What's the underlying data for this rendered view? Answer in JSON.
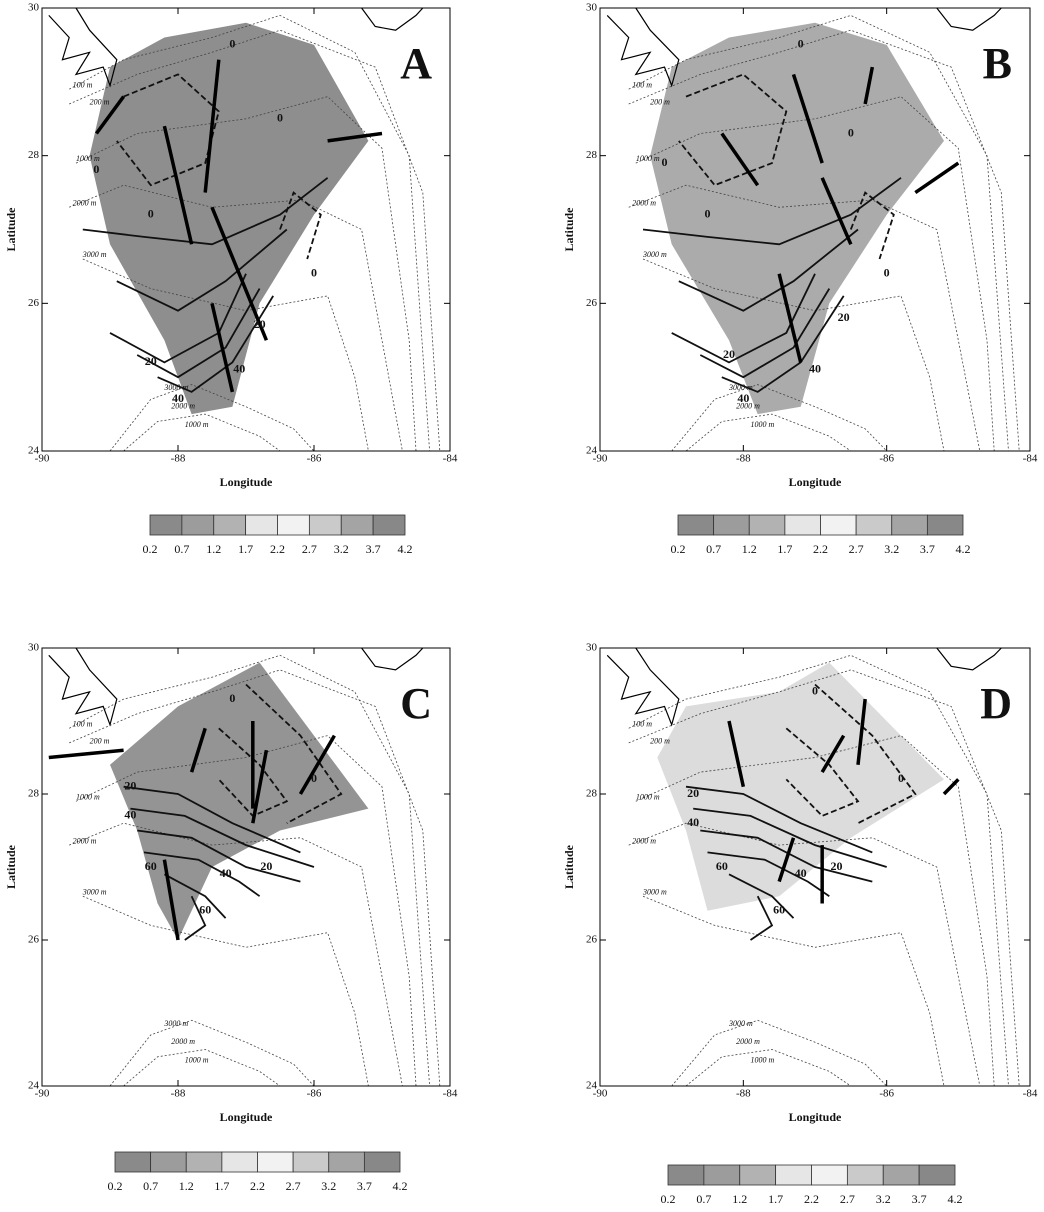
{
  "panels": [
    {
      "label": "A",
      "x_axis_title": "Longitude",
      "y_axis_title": "Latitude",
      "x_ticks": [
        -90,
        -88,
        -86,
        -84
      ],
      "y_ticks": [
        24,
        26,
        28,
        30
      ],
      "colorbar_ticks": [
        0.2,
        0.7,
        1.2,
        1.7,
        2.2,
        2.7,
        3.2,
        3.7,
        4.2
      ],
      "contour_labels": [
        "0",
        "0",
        "0",
        "0",
        "0",
        "20",
        "20",
        "40",
        "40"
      ],
      "isobath_labels": [
        "100 m",
        "200 m",
        "1000 m",
        "2000 m",
        "3000 m",
        "3000 m",
        "2000 m",
        "1000 m"
      ]
    },
    {
      "label": "B",
      "x_axis_title": "Longitude",
      "y_axis_title": "Latitude",
      "x_ticks": [
        -90,
        -88,
        -86,
        -84
      ],
      "y_ticks": [
        24,
        26,
        28,
        30
      ],
      "colorbar_ticks": [
        0.2,
        0.7,
        1.2,
        1.7,
        2.2,
        2.7,
        3.2,
        3.7,
        4.2
      ],
      "contour_labels": [
        "0",
        "0",
        "0",
        "0",
        "0",
        "20",
        "20",
        "40",
        "40"
      ],
      "isobath_labels": [
        "100 m",
        "200 m",
        "1000 m",
        "2000 m",
        "3000 m",
        "3000 m",
        "2000 m",
        "1000 m"
      ]
    },
    {
      "label": "C",
      "x_axis_title": "Longitude",
      "y_axis_title": "Latitude",
      "x_ticks": [
        -90,
        -88,
        -86,
        -84
      ],
      "y_ticks": [
        24,
        26,
        28,
        30
      ],
      "colorbar_ticks": [
        0.2,
        0.7,
        1.2,
        1.7,
        2.2,
        2.7,
        3.2,
        3.7,
        4.2
      ],
      "contour_labels": [
        "0",
        "0",
        "20",
        "40",
        "60",
        "20",
        "40",
        "60"
      ],
      "isobath_labels": [
        "100 m",
        "200 m",
        "1000 m",
        "2000 m",
        "3000 m",
        "3000 m",
        "2000 m",
        "1000 m"
      ]
    },
    {
      "label": "D",
      "x_axis_title": "Longitude",
      "y_axis_title": "Latitude",
      "x_ticks": [
        -90,
        -88,
        -86,
        -84
      ],
      "y_ticks": [
        24,
        26,
        28,
        30
      ],
      "colorbar_ticks": [
        0.2,
        0.7,
        1.2,
        1.7,
        2.2,
        2.7,
        3.2,
        3.7,
        4.2
      ],
      "contour_labels": [
        "0",
        "0",
        "20",
        "40",
        "60",
        "20",
        "40",
        "60"
      ],
      "isobath_labels": [
        "100 m",
        "200 m",
        "1000 m",
        "2000 m",
        "3000 m",
        "3000 m",
        "2000 m",
        "1000 m"
      ]
    }
  ]
}
